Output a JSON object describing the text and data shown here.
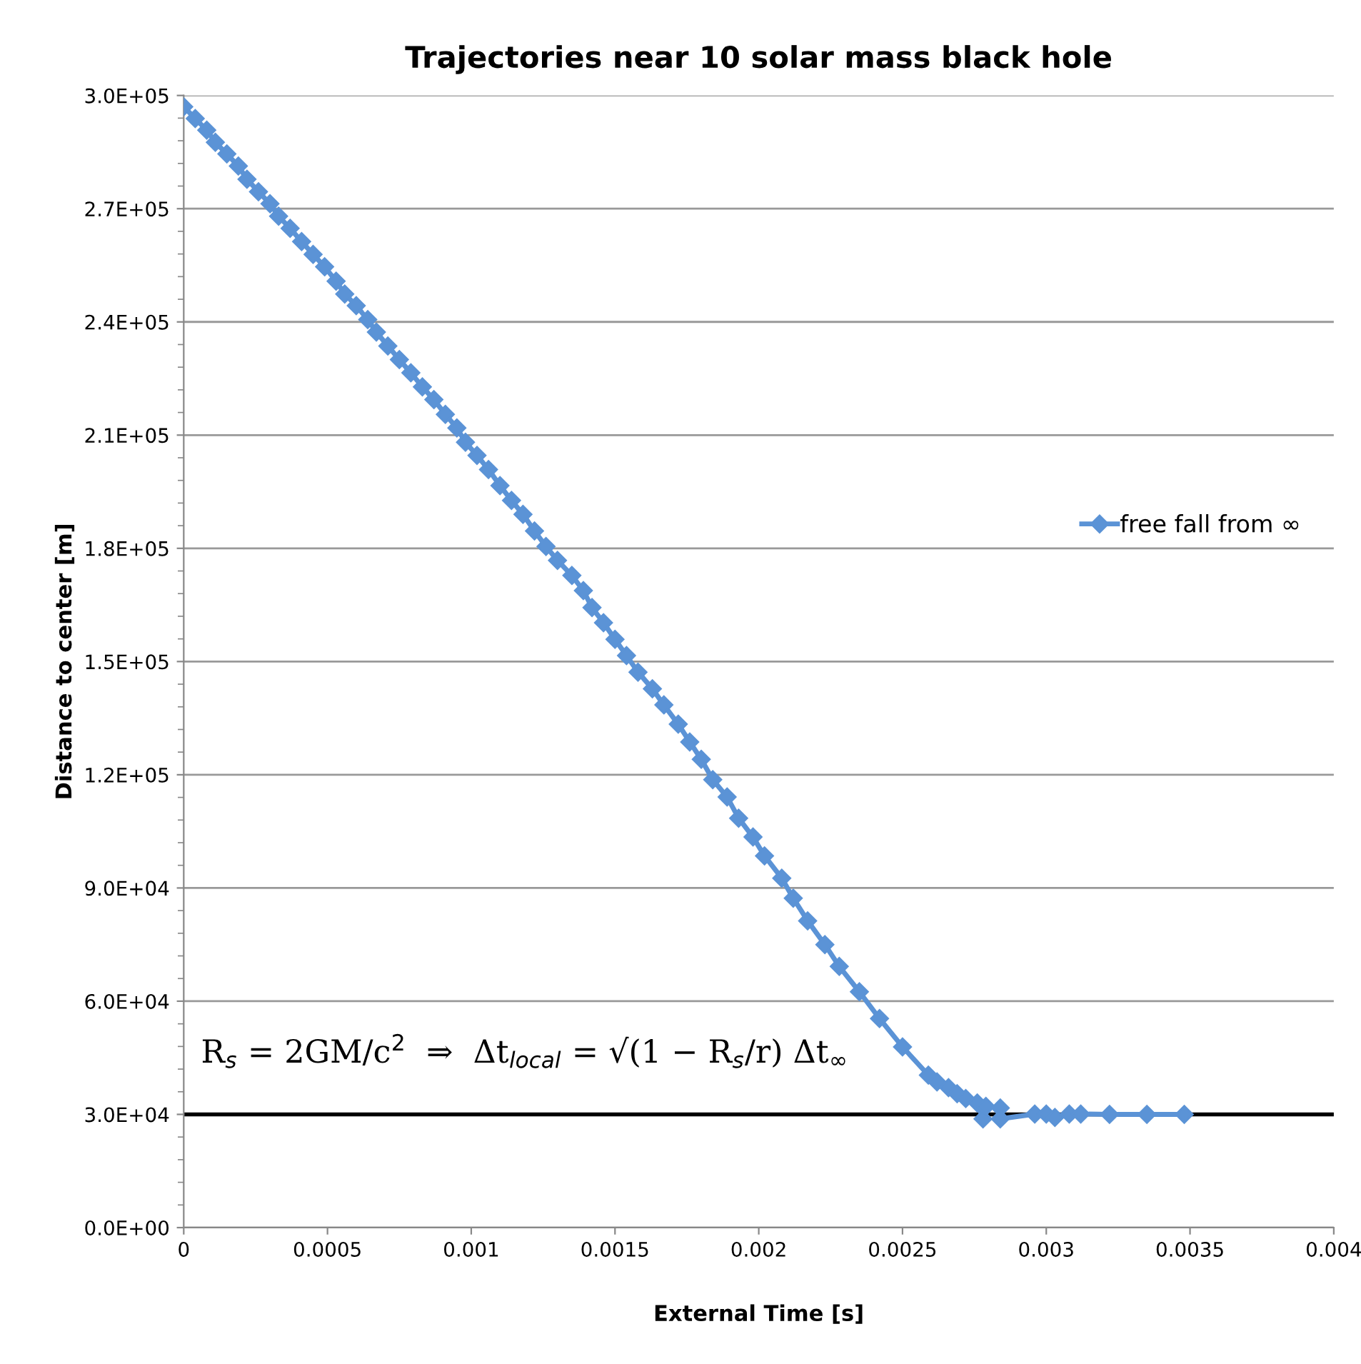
{
  "chart_data": {
    "type": "line",
    "title": "Trajectories near 10 solar mass black hole",
    "xlabel": "External Time [s]",
    "ylabel": "Distance to center [m]",
    "x": [
      0.0,
      4e-05,
      8e-05,
      0.00011,
      0.00015,
      0.00019,
      0.00022,
      0.00026,
      0.0003,
      0.00033,
      0.00037,
      0.00041,
      0.00045,
      0.00049,
      0.00053,
      0.00056,
      0.0006,
      0.00064,
      0.00067,
      0.00071,
      0.00075,
      0.00079,
      0.00083,
      0.00087,
      0.00091,
      0.00095,
      0.00098,
      0.00102,
      0.00106,
      0.0011,
      0.00114,
      0.00118,
      0.00122,
      0.00126,
      0.0013,
      0.00135,
      0.00139,
      0.00142,
      0.00146,
      0.0015,
      0.00154,
      0.00158,
      0.00163,
      0.00167,
      0.00172,
      0.00176,
      0.0018,
      0.00184,
      0.00189,
      0.00193,
      0.00198,
      0.00202,
      0.00208,
      0.00212,
      0.00217,
      0.00223,
      0.00228,
      0.00235,
      0.00242,
      0.0025,
      0.00259,
      0.00262,
      0.00266,
      0.00269,
      0.00272,
      0.00276,
      0.00278,
      0.00279,
      0.00284,
      0.00284,
      0.00296,
      0.003,
      0.00303,
      0.00308,
      0.00312,
      0.00322,
      0.00335,
      0.00348
    ],
    "series": [
      {
        "name": "free fall from ∞",
        "color": "#5b93d6",
        "values": [
          297000,
          293900,
          290800,
          287600,
          284500,
          281300,
          277800,
          274500,
          271300,
          268000,
          264800,
          261300,
          257900,
          254600,
          250800,
          247400,
          244300,
          240600,
          237300,
          233600,
          230000,
          226500,
          222800,
          219400,
          215500,
          211900,
          208100,
          204600,
          200900,
          196600,
          192700,
          189000,
          184600,
          180500,
          176800,
          172800,
          168800,
          164300,
          160300,
          155900,
          151600,
          147200,
          142800,
          138500,
          133400,
          128700,
          124100,
          118700,
          114100,
          108500,
          103500,
          98500,
          92600,
          87300,
          81300,
          75000,
          69200,
          62500,
          55400,
          47900,
          40400,
          38600,
          37100,
          35500,
          34200,
          33000,
          28800,
          32100,
          31700,
          28800,
          30100,
          30100,
          29200,
          30100,
          30100,
          30000,
          30000,
          30000
        ]
      }
    ],
    "xlim": [
      0,
      0.004
    ],
    "xticks": [
      0,
      0.0005,
      0.001,
      0.0015,
      0.002,
      0.0025,
      0.003,
      0.0035,
      0.004
    ],
    "ylim": [
      0,
      300000
    ],
    "yticks": [
      {
        "value": 0,
        "label": "0.0E+00"
      },
      {
        "value": 30000,
        "label": "3.0E+04"
      },
      {
        "value": 60000,
        "label": "6.0E+04"
      },
      {
        "value": 90000,
        "label": "9.0E+04"
      },
      {
        "value": 120000,
        "label": "1.2E+05"
      },
      {
        "value": 150000,
        "label": "1.5E+05"
      },
      {
        "value": 180000,
        "label": "1.8E+05"
      },
      {
        "value": 210000,
        "label": "2.1E+05"
      },
      {
        "value": 240000,
        "label": "2.4E+05"
      },
      {
        "value": 270000,
        "label": "2.7E+05"
      },
      {
        "value": 300000,
        "label": "3.0E+05"
      }
    ],
    "ref_lines": [
      {
        "axis": "y",
        "value": 30000,
        "color": "#000000",
        "line_style": "solid"
      }
    ],
    "annotations": [
      "R$_{s}$ = 2GM/c$^{2}$  ⇒  Δt$_{local}$ = √(1 − R$_{s}$/r) Δt$_{∞}$"
    ],
    "grid": "y",
    "legend": "right",
    "marker": "diamond",
    "line_style": "solid"
  }
}
